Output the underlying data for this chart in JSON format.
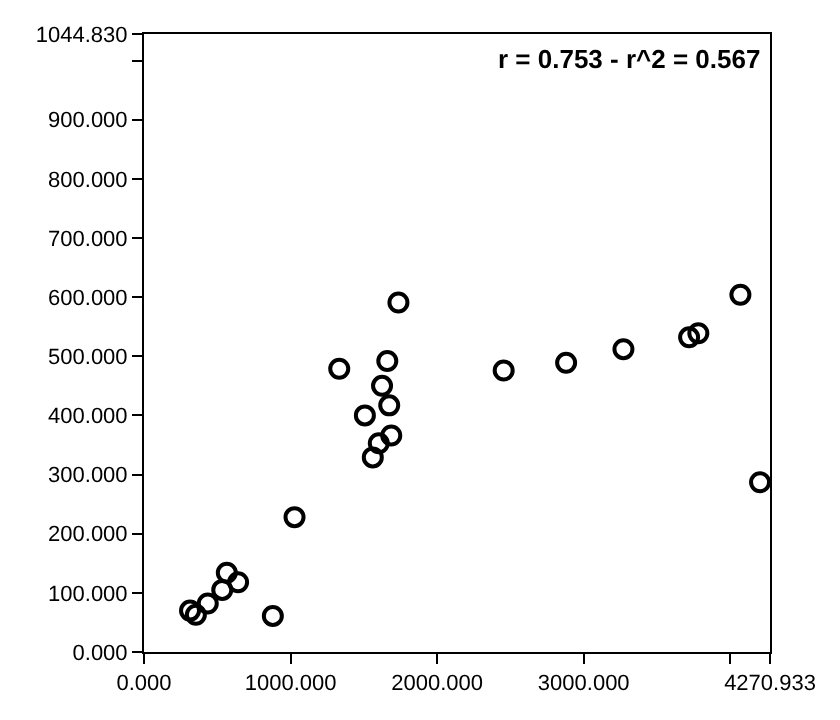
{
  "chart_data": {
    "type": "scatter",
    "marker": "circle",
    "grid": false,
    "annotations": [
      "r = 0.753 - r^2 = 0.567"
    ],
    "x": [
      314,
      354,
      435,
      534,
      565,
      642,
      879,
      1027,
      1332,
      1507,
      1561,
      1602,
      1624,
      1660,
      1673,
      1687,
      1736,
      2454,
      2880,
      3271,
      3719,
      3782,
      4069,
      4203
    ],
    "series": [
      {
        "color": "#000000",
        "values": [
          70,
          63,
          82,
          105,
          134,
          118,
          61,
          228,
          479,
          400,
          329,
          353,
          450,
          492,
          417,
          366,
          591,
          476,
          489,
          512,
          532,
          539,
          604,
          287
        ]
      }
    ],
    "xlim": [
      0,
      4270.933
    ],
    "xticks": [
      {
        "value": 0,
        "label": "0.000"
      },
      {
        "value": 1000,
        "label": "1000.000"
      },
      {
        "value": 2000,
        "label": "2000.000"
      },
      {
        "value": 3000,
        "label": "3000.000"
      },
      {
        "value": 4000,
        "label": null
      },
      {
        "value": 4270.933,
        "label": "4270.933"
      }
    ],
    "ylim": [
      0,
      1044.83
    ],
    "yticks": [
      {
        "value": 0,
        "label": "0.000"
      },
      {
        "value": 100,
        "label": "100.000"
      },
      {
        "value": 200,
        "label": "200.000"
      },
      {
        "value": 300,
        "label": "300.000"
      },
      {
        "value": 400,
        "label": "400.000"
      },
      {
        "value": 500,
        "label": "500.000"
      },
      {
        "value": 600,
        "label": "600.000"
      },
      {
        "value": 700,
        "label": "700.000"
      },
      {
        "value": 800,
        "label": "800.000"
      },
      {
        "value": 900,
        "label": "900.000"
      },
      {
        "value": 1000,
        "label": null
      },
      {
        "value": 1044.83,
        "label": "1044.830"
      }
    ]
  }
}
